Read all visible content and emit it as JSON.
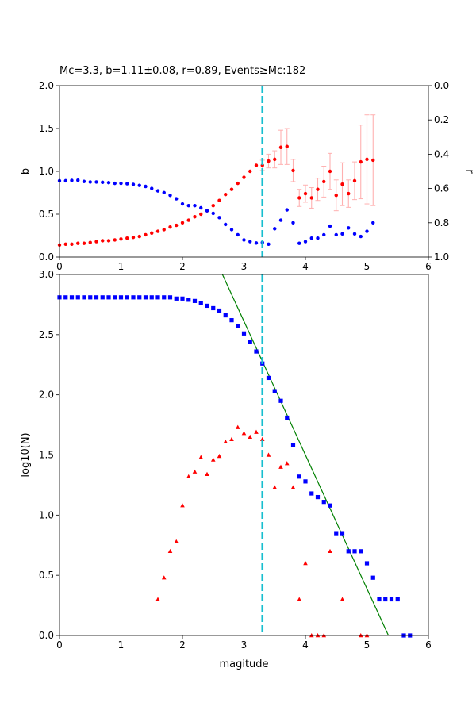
{
  "chart_data": [
    {
      "type": "scatter",
      "title": "Mc=3.3, b=1.11±0.08, r=0.89, Events≥Mc:182",
      "xlabel": "",
      "ylabel": "b",
      "ylabel_right": "r",
      "xlim": [
        0,
        6
      ],
      "ylim": [
        0,
        2.0
      ],
      "ylim_right": [
        1.0,
        0.0
      ],
      "right_axis_inverted": true,
      "grid": false,
      "xticks": [
        "0",
        "1",
        "2",
        "3",
        "4",
        "5",
        "6"
      ],
      "yticks": [
        "0.0",
        "0.5",
        "1.0",
        "1.5",
        "2.0"
      ],
      "yticks_right": [
        "0.0",
        "0.2",
        "0.4",
        "0.6",
        "0.8",
        "1.0"
      ],
      "vline": {
        "x": 3.3,
        "color": "#17becf",
        "style": "dashed"
      },
      "series": [
        {
          "axis": "left",
          "color": "#ff0000",
          "marker": "circle",
          "x": [
            0.0,
            0.1,
            0.2,
            0.3,
            0.4,
            0.5,
            0.6,
            0.7,
            0.8,
            0.9,
            1.0,
            1.1,
            1.2,
            1.3,
            1.4,
            1.5,
            1.6,
            1.7,
            1.8,
            1.9,
            2.0,
            2.1,
            2.2,
            2.3,
            2.4,
            2.5,
            2.6,
            2.7,
            2.8,
            2.9,
            3.0,
            3.1,
            3.2,
            3.3,
            3.4,
            3.5,
            3.6,
            3.7,
            3.8,
            3.9,
            4.0,
            4.1,
            4.2,
            4.3,
            4.4,
            4.5,
            4.6,
            4.7,
            4.8,
            4.9,
            5.0,
            5.1
          ],
          "y": [
            0.14,
            0.15,
            0.15,
            0.16,
            0.16,
            0.17,
            0.18,
            0.19,
            0.19,
            0.2,
            0.21,
            0.22,
            0.23,
            0.24,
            0.26,
            0.28,
            0.3,
            0.32,
            0.35,
            0.37,
            0.4,
            0.43,
            0.47,
            0.5,
            0.54,
            0.6,
            0.66,
            0.73,
            0.79,
            0.86,
            0.93,
            1.0,
            1.07,
            1.07,
            1.12,
            1.14,
            1.28,
            1.29,
            1.01,
            0.69,
            0.74,
            0.69,
            0.79,
            0.88,
            1.0,
            0.72,
            0.85,
            0.74,
            0.89,
            1.11,
            1.14,
            1.13
          ],
          "err": [
            0,
            0,
            0,
            0,
            0,
            0,
            0,
            0,
            0,
            0,
            0,
            0,
            0,
            0,
            0,
            0,
            0,
            0,
            0,
            0,
            0,
            0,
            0,
            0,
            0,
            0,
            0,
            0,
            0,
            0,
            0,
            0,
            0,
            0.06,
            0.08,
            0.1,
            0.2,
            0.21,
            0.13,
            0.1,
            0.1,
            0.12,
            0.13,
            0.18,
            0.21,
            0.18,
            0.25,
            0.16,
            0.22,
            0.43,
            0.52,
            0.53
          ]
        },
        {
          "axis": "right",
          "color": "#0000ff",
          "marker": "circle",
          "x": [
            0.0,
            0.1,
            0.2,
            0.3,
            0.4,
            0.5,
            0.6,
            0.7,
            0.8,
            0.9,
            1.0,
            1.1,
            1.2,
            1.3,
            1.4,
            1.5,
            1.6,
            1.7,
            1.8,
            1.9,
            2.0,
            2.1,
            2.2,
            2.3,
            2.4,
            2.5,
            2.6,
            2.7,
            2.8,
            2.9,
            3.0,
            3.1,
            3.2,
            3.3,
            3.4,
            3.5,
            3.6,
            3.7,
            3.8,
            3.9,
            4.0,
            4.1,
            4.2,
            4.3,
            4.4,
            4.5,
            4.6,
            4.7,
            4.8,
            4.9,
            5.0,
            5.1
          ],
          "y": [
            0.555,
            0.555,
            0.553,
            0.552,
            0.559,
            0.562,
            0.562,
            0.564,
            0.566,
            0.57,
            0.57,
            0.572,
            0.576,
            0.582,
            0.588,
            0.6,
            0.614,
            0.624,
            0.64,
            0.66,
            0.69,
            0.7,
            0.7,
            0.713,
            0.73,
            0.745,
            0.77,
            0.81,
            0.84,
            0.87,
            0.9,
            0.91,
            0.918,
            0.915,
            0.925,
            0.835,
            0.785,
            0.725,
            0.8,
            0.92,
            0.91,
            0.89,
            0.89,
            0.87,
            0.82,
            0.87,
            0.865,
            0.83,
            0.865,
            0.88,
            0.85,
            0.8
          ]
        }
      ]
    },
    {
      "type": "scatter",
      "title": "",
      "xlabel": "magitude",
      "ylabel": "log10(N)",
      "xlim": [
        0,
        6
      ],
      "ylim": [
        0,
        3.0
      ],
      "grid": false,
      "xticks": [
        "0",
        "1",
        "2",
        "3",
        "4",
        "5",
        "6"
      ],
      "yticks": [
        "0.0",
        "0.5",
        "1.0",
        "1.5",
        "2.0",
        "2.5",
        "3.0"
      ],
      "vline": {
        "x": 3.3,
        "color": "#17becf",
        "style": "dashed"
      },
      "fit_line": {
        "color": "#008000",
        "x": [
          2.65,
          5.35
        ],
        "y": [
          3.0,
          0.0
        ]
      },
      "series": [
        {
          "color": "#0000ff",
          "marker": "square",
          "x": [
            0.0,
            0.1,
            0.2,
            0.3,
            0.4,
            0.5,
            0.6,
            0.7,
            0.8,
            0.9,
            1.0,
            1.1,
            1.2,
            1.3,
            1.4,
            1.5,
            1.6,
            1.7,
            1.8,
            1.9,
            2.0,
            2.1,
            2.2,
            2.3,
            2.4,
            2.5,
            2.6,
            2.7,
            2.8,
            2.9,
            3.0,
            3.1,
            3.2,
            3.3,
            3.4,
            3.5,
            3.6,
            3.7,
            3.8,
            3.9,
            4.0,
            4.1,
            4.2,
            4.3,
            4.4,
            4.5,
            4.6,
            4.7,
            4.8,
            4.9,
            5.0,
            5.1,
            5.2,
            5.3,
            5.4,
            5.5,
            5.6,
            5.7
          ],
          "y": [
            2.81,
            2.81,
            2.81,
            2.81,
            2.81,
            2.81,
            2.81,
            2.81,
            2.81,
            2.81,
            2.81,
            2.81,
            2.81,
            2.81,
            2.81,
            2.81,
            2.81,
            2.81,
            2.81,
            2.8,
            2.8,
            2.79,
            2.78,
            2.76,
            2.74,
            2.72,
            2.7,
            2.66,
            2.62,
            2.57,
            2.51,
            2.44,
            2.36,
            2.26,
            2.14,
            2.03,
            1.95,
            1.81,
            1.58,
            1.32,
            1.28,
            1.18,
            1.15,
            1.11,
            1.08,
            0.85,
            0.85,
            0.7,
            0.7,
            0.7,
            0.6,
            0.48,
            0.3,
            0.3,
            0.3,
            0.3,
            0.0,
            0.0
          ]
        },
        {
          "color": "#ff0000",
          "marker": "triangle",
          "x": [
            1.6,
            1.7,
            1.8,
            1.9,
            2.0,
            2.1,
            2.2,
            2.3,
            2.4,
            2.5,
            2.6,
            2.7,
            2.8,
            2.9,
            3.0,
            3.1,
            3.2,
            3.3,
            3.4,
            3.5,
            3.6,
            3.7,
            3.8,
            3.9,
            4.0,
            4.1,
            4.2,
            4.3,
            4.4,
            4.6,
            4.9,
            5.0
          ],
          "y": [
            0.3,
            0.48,
            0.7,
            0.78,
            1.08,
            1.32,
            1.36,
            1.48,
            1.34,
            1.46,
            1.49,
            1.61,
            1.63,
            1.73,
            1.68,
            1.65,
            1.69,
            1.63,
            1.5,
            1.23,
            1.4,
            1.43,
            1.23,
            0.3,
            0.6,
            0.0,
            0.0,
            0.0,
            0.7,
            0.3,
            0.0,
            0.0
          ]
        }
      ]
    }
  ]
}
